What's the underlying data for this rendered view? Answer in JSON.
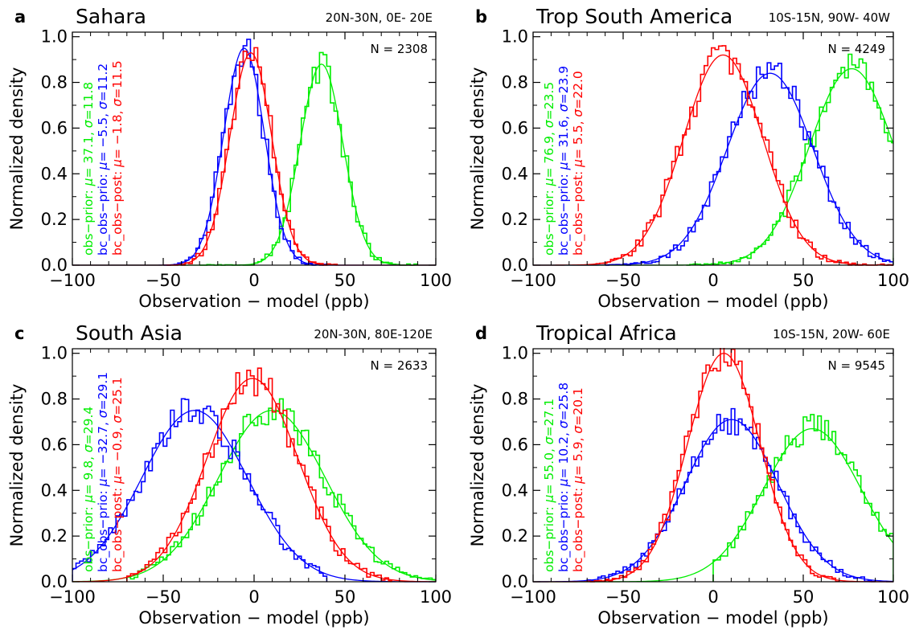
{
  "chart_data": [
    {
      "type": "histogram",
      "panel": "a",
      "title": "Sahara",
      "region": "20N-30N,  0E- 20E",
      "n_text": "N =   2308",
      "xlabel": "Observation − model (ppb)",
      "ylabel": "Normalized density",
      "xlim": [
        -100,
        100
      ],
      "ylim": [
        0,
        1.02
      ],
      "xticks": [
        -100,
        -50,
        0,
        50,
        100
      ],
      "yticks": [
        0.0,
        0.2,
        0.4,
        0.6,
        0.8,
        1.0
      ],
      "series": [
        {
          "name": "obs-prior",
          "color": "#00ee00",
          "mu": 37.1,
          "sigma": 11.8,
          "amp": 0.88,
          "range": [
            -30,
            90
          ],
          "label_parts": [
            "obs−prior: ",
            "μ",
            "= 37.1, ",
            "σ",
            "=11.8"
          ]
        },
        {
          "name": "bc_obs-prio",
          "color": "#0000ff",
          "mu": -5.5,
          "sigma": 11.2,
          "amp": 0.95,
          "range": [
            -50,
            40
          ],
          "label_parts": [
            "bc_obs−prio: ",
            "μ",
            "= −5.5, ",
            "σ",
            "=11.2"
          ]
        },
        {
          "name": "bc_obs-post",
          "color": "#ff0000",
          "mu": -1.8,
          "sigma": 11.5,
          "amp": 0.93,
          "range": [
            -48,
            45
          ],
          "label_parts": [
            "bc_obs−post: ",
            "μ",
            "= −1.8, ",
            "σ",
            "=11.5"
          ]
        }
      ]
    },
    {
      "type": "histogram",
      "panel": "b",
      "title": "Trop South America",
      "region": "10S-15N, 90W- 40W",
      "n_text": "N =   4249",
      "xlabel": "Observation − model (ppb)",
      "ylabel": "Normalized density",
      "xlim": [
        -100,
        100
      ],
      "ylim": [
        0,
        1.02
      ],
      "xticks": [
        -100,
        -50,
        0,
        50,
        100
      ],
      "yticks": [
        0.0,
        0.2,
        0.4,
        0.6,
        0.8,
        1.0
      ],
      "series": [
        {
          "name": "obs-prior",
          "color": "#00ee00",
          "mu": 76.9,
          "sigma": 23.5,
          "amp": 0.86,
          "range": [
            -15,
            100
          ],
          "label_parts": [
            "obs−prior: ",
            "μ",
            "= 76.9, ",
            "σ",
            "=23.5"
          ]
        },
        {
          "name": "bc_obs-prio",
          "color": "#0000ff",
          "mu": 31.6,
          "sigma": 23.9,
          "amp": 0.84,
          "range": [
            -60,
            100
          ],
          "label_parts": [
            "bc_obs−prio: ",
            "μ",
            "= 31.6, ",
            "σ",
            "=23.9"
          ]
        },
        {
          "name": "bc_obs-post",
          "color": "#ff0000",
          "mu": 5.5,
          "sigma": 22.0,
          "amp": 0.92,
          "range": [
            -65,
            100
          ],
          "label_parts": [
            "bc_obs−post: ",
            "μ",
            "= 5.5, ",
            "σ",
            "=22.0"
          ]
        }
      ]
    },
    {
      "type": "histogram",
      "panel": "c",
      "title": "South Asia",
      "region": "20N-30N, 80E-120E",
      "n_text": "N =   2633",
      "xlabel": "Observation − model (ppb)",
      "ylabel": "Normalized density",
      "xlim": [
        -100,
        100
      ],
      "ylim": [
        0,
        1.02
      ],
      "xticks": [
        -100,
        -50,
        0,
        50,
        100
      ],
      "yticks": [
        0.0,
        0.2,
        0.4,
        0.6,
        0.8,
        1.0
      ],
      "series": [
        {
          "name": "obs-prior",
          "color": "#00ee00",
          "mu": 9.8,
          "sigma": 29.4,
          "amp": 0.75,
          "range": [
            -70,
            100
          ],
          "label_parts": [
            "obs−prior: ",
            "μ",
            "= 9.8, ",
            "σ",
            "=29.4"
          ]
        },
        {
          "name": "bc_obs-prio",
          "color": "#0000ff",
          "mu": -32.7,
          "sigma": 29.1,
          "amp": 0.75,
          "range": [
            -100,
            40
          ],
          "label_parts": [
            "bc_obs−prio: ",
            "μ",
            "= −32.7, ",
            "σ",
            "=29.1"
          ]
        },
        {
          "name": "bc_obs-post",
          "color": "#ff0000",
          "mu": -0.9,
          "sigma": 25.1,
          "amp": 0.89,
          "range": [
            -70,
            75
          ],
          "label_parts": [
            "bc_obs−post: ",
            "μ",
            "= −0.9, ",
            "σ",
            "=25.1"
          ]
        }
      ]
    },
    {
      "type": "histogram",
      "panel": "d",
      "title": "Tropical Africa",
      "region": "10S-15N, 20W- 60E",
      "n_text": "N =   9545",
      "xlabel": "Observation − model (ppb)",
      "ylabel": "Normalized density",
      "xlim": [
        -100,
        100
      ],
      "ylim": [
        0,
        1.02
      ],
      "xticks": [
        -100,
        -50,
        0,
        50,
        100
      ],
      "yticks": [
        0.0,
        0.2,
        0.4,
        0.6,
        0.8,
        1.0
      ],
      "series": [
        {
          "name": "obs-prior",
          "color": "#00ee00",
          "mu": 55.0,
          "sigma": 27.1,
          "amp": 0.67,
          "range": [
            0,
            100
          ],
          "label_parts": [
            "obs−prior: ",
            "μ",
            "= 55.0, ",
            "σ",
            "=27.1"
          ]
        },
        {
          "name": "bc_obs-prio",
          "color": "#0000ff",
          "mu": 10.2,
          "sigma": 25.8,
          "amp": 0.71,
          "range": [
            -70,
            90
          ],
          "label_parts": [
            "bc_obs−prio: ",
            "μ",
            "= 10.2, ",
            "σ",
            "=25.8"
          ]
        },
        {
          "name": "bc_obs-post",
          "color": "#ff0000",
          "mu": 5.9,
          "sigma": 20.1,
          "amp": 1.0,
          "range": [
            -70,
            70
          ],
          "label_parts": [
            "bc_obs−post: ",
            "μ",
            "= 5.9, ",
            "σ",
            "=20.1"
          ]
        }
      ]
    }
  ]
}
